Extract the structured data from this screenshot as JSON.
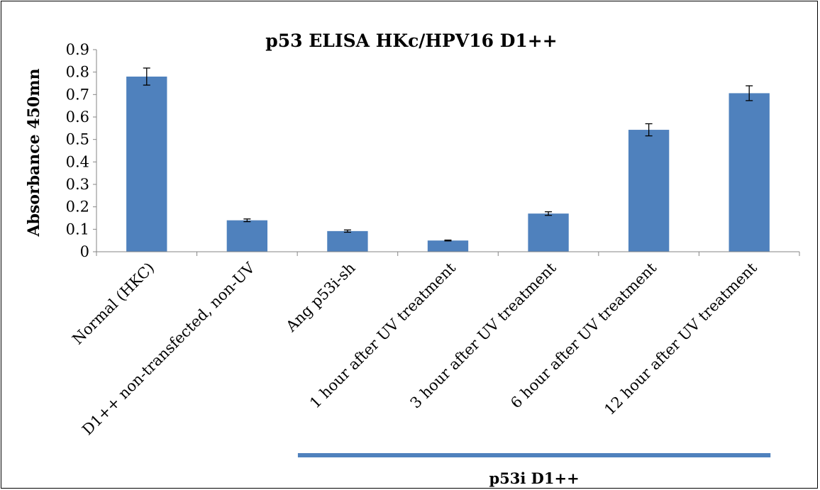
{
  "chart_data": {
    "type": "bar",
    "title": "p53 ELISA HKc/HPV16 D1++",
    "xlabel": "",
    "ylabel": "Absorbance 450mn",
    "ylim": [
      0,
      0.9
    ],
    "ytick_labels": [
      "0",
      "0.1",
      "0.2",
      "0.3",
      "0.4",
      "0.5",
      "0.6",
      "0.7",
      "0.8",
      "0.9"
    ],
    "categories": [
      "Normal (HKC)",
      "D1++ non-transfected, non-UV",
      "Ang p53i-sh",
      "1 hour after UV treatment",
      "3 hour after UV treatment",
      "6 hour after UV treatment",
      "12 hour after UV treatment"
    ],
    "values": [
      0.78,
      0.14,
      0.092,
      0.05,
      0.17,
      0.543,
      0.706
    ],
    "error": [
      0.038,
      0.006,
      0.005,
      0.002,
      0.008,
      0.027,
      0.033
    ],
    "bar_color": "#4F81BD",
    "grid": false,
    "group_bracket": {
      "label": "p53i D1++",
      "color": "#4F81BD"
    }
  }
}
